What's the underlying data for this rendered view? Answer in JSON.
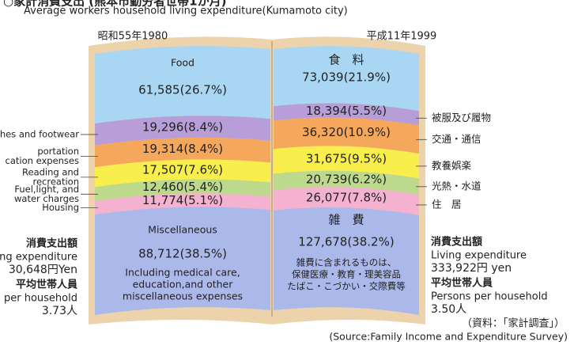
{
  "chart_data": {
    "type": "book",
    "title": "○家計消費支出 (熊本市勤労者世帯1か月)",
    "subtitle": "Average workers household living expenditure(Kumamoto city)",
    "categories": [
      "昭和55年1980",
      "平成11年1999"
    ],
    "series": [
      {
        "name": [
          "Food"
        ],
        "name_ja": "食　料",
        "color": "#a9d6f2",
        "values": [
          61585,
          73039
        ],
        "value_labels": [
          "61,585(26.7%)",
          "73,039(21.9%)"
        ]
      },
      {
        "name": [
          "hes and footwear"
        ],
        "name_ja": "被服及び履物",
        "color": "#b79ed8",
        "values": [
          19296,
          18394
        ],
        "value_labels": [
          "19,296(8.4%)",
          "18,394(5.5%)"
        ]
      },
      {
        "name": [
          "portation",
          "cation expenses"
        ],
        "name_ja": "交通・通信",
        "color": "#f5a75c",
        "values": [
          19314,
          36320
        ],
        "value_labels": [
          "19,314(8.4%)",
          "36,320(10.9%)"
        ]
      },
      {
        "name": [
          "Reading and",
          "recreation"
        ],
        "name_ja": "教養娯楽",
        "color": "#f8ef4c",
        "values": [
          17507,
          31675
        ],
        "value_labels": [
          "17,507(7.6%)",
          "31,675(9.5%)"
        ]
      },
      {
        "name": [
          "Fuel,light, and",
          "water charges"
        ],
        "name_ja": "光熱・水道",
        "color": "#bcd98c",
        "values": [
          12460,
          20739
        ],
        "value_labels": [
          "12,460(5.4%)",
          "20,739(6.2%)"
        ]
      },
      {
        "name": [
          "Housing"
        ],
        "name_ja": "住　居",
        "color": "#f4b2d0",
        "values": [
          11774,
          26077
        ],
        "value_labels": [
          "11,774(5.1%)",
          "26,077(7.8%)"
        ]
      },
      {
        "name": [
          "Miscellaneous"
        ],
        "name_ja": "雑　費",
        "color": "#abb8ea",
        "values": [
          88712,
          127678
        ],
        "value_labels": [
          "88,712(38.5%)",
          "127,678(38.2%)"
        ]
      }
    ],
    "misc_notes": [
      [
        "Including medical care,",
        "education,and other",
        "miscellaneous expenses"
      ],
      [
        "雑費に含まれるものは、",
        "保健医療・教育・理美容品",
        "たばこ・こづかい・交際費等"
      ]
    ],
    "totals": [
      [
        "消費支出額",
        "ing expenditure",
        "30,648円Yen",
        "平均世帯人員",
        "per household",
        "3.73人"
      ],
      [
        "消費支出額",
        "Living expenditure",
        "333,922円 yen",
        "平均世帯人員",
        "Persons per household",
        "3.50人"
      ]
    ],
    "source": [
      "（資料：「家計調査」）",
      "(Source:Family Income and Expenditure Survey)"
    ]
  }
}
